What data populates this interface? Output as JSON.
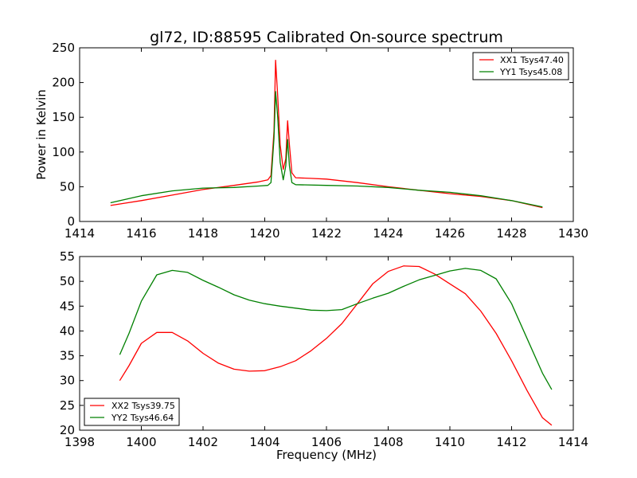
{
  "chart_data": [
    {
      "type": "line",
      "title": "gl72, ID:88595 Calibrated On-source spectrum",
      "xlabel": "",
      "ylabel": "Power in Kelvin",
      "xlim": [
        1414,
        1430
      ],
      "ylim": [
        0,
        250
      ],
      "xticks": [
        "1414",
        "1416",
        "1418",
        "1420",
        "1422",
        "1424",
        "1426",
        "1428",
        "1430"
      ],
      "yticks": [
        "0",
        "50",
        "100",
        "150",
        "200",
        "250"
      ],
      "grid": false,
      "legend_position": "top-right",
      "series": [
        {
          "name": "XX1 Tsys47.40",
          "color": "#ff0000",
          "points": [
            [
              1415.0,
              23
            ],
            [
              1416.0,
              30
            ],
            [
              1417.0,
              38
            ],
            [
              1418.0,
              46
            ],
            [
              1419.0,
              52
            ],
            [
              1419.8,
              57
            ],
            [
              1420.1,
              60
            ],
            [
              1420.2,
              66
            ],
            [
              1420.3,
              130
            ],
            [
              1420.35,
              232
            ],
            [
              1420.42,
              180
            ],
            [
              1420.5,
              110
            ],
            [
              1420.6,
              75
            ],
            [
              1420.68,
              90
            ],
            [
              1420.74,
              145
            ],
            [
              1420.8,
              110
            ],
            [
              1420.88,
              70
            ],
            [
              1421.0,
              63
            ],
            [
              1421.5,
              62
            ],
            [
              1422.0,
              61
            ],
            [
              1423.0,
              56
            ],
            [
              1424.0,
              50
            ],
            [
              1425.0,
              45
            ],
            [
              1426.0,
              40
            ],
            [
              1427.0,
              36
            ],
            [
              1428.0,
              30
            ],
            [
              1429.0,
              20
            ]
          ]
        },
        {
          "name": "YY1 Tsys45.08",
          "color": "#008000",
          "points": [
            [
              1415.0,
              27
            ],
            [
              1416.0,
              37
            ],
            [
              1417.0,
              44
            ],
            [
              1418.0,
              48
            ],
            [
              1419.0,
              49
            ],
            [
              1419.8,
              51
            ],
            [
              1420.1,
              52
            ],
            [
              1420.2,
              56
            ],
            [
              1420.3,
              120
            ],
            [
              1420.35,
              187
            ],
            [
              1420.42,
              150
            ],
            [
              1420.5,
              85
            ],
            [
              1420.6,
              60
            ],
            [
              1420.68,
              80
            ],
            [
              1420.74,
              118
            ],
            [
              1420.8,
              80
            ],
            [
              1420.88,
              56
            ],
            [
              1421.0,
              53
            ],
            [
              1422.0,
              52
            ],
            [
              1423.0,
              51
            ],
            [
              1424.0,
              49
            ],
            [
              1425.0,
              45
            ],
            [
              1426.0,
              42
            ],
            [
              1427.0,
              37
            ],
            [
              1428.0,
              30
            ],
            [
              1429.0,
              21
            ]
          ]
        }
      ]
    },
    {
      "type": "line",
      "title": "",
      "xlabel": "Frequency (MHz)",
      "ylabel": "",
      "xlim": [
        1398,
        1414
      ],
      "ylim": [
        20,
        55
      ],
      "xticks": [
        "1398",
        "1400",
        "1402",
        "1404",
        "1406",
        "1408",
        "1410",
        "1412",
        "1414"
      ],
      "yticks": [
        "20",
        "25",
        "30",
        "35",
        "40",
        "45",
        "50",
        "55"
      ],
      "grid": false,
      "legend_position": "bottom-left",
      "series": [
        {
          "name": "XX2 Tsys39.75",
          "color": "#ff0000",
          "points": [
            [
              1399.3,
              30
            ],
            [
              1399.6,
              33
            ],
            [
              1400.0,
              37.5
            ],
            [
              1400.5,
              39.7
            ],
            [
              1401.0,
              39.7
            ],
            [
              1401.5,
              38
            ],
            [
              1402.0,
              35.5
            ],
            [
              1402.5,
              33.5
            ],
            [
              1403.0,
              32.3
            ],
            [
              1403.5,
              31.9
            ],
            [
              1404.0,
              32
            ],
            [
              1404.5,
              32.8
            ],
            [
              1405.0,
              34
            ],
            [
              1405.5,
              36
            ],
            [
              1406.0,
              38.5
            ],
            [
              1406.5,
              41.5
            ],
            [
              1407.0,
              45.5
            ],
            [
              1407.5,
              49.5
            ],
            [
              1408.0,
              52
            ],
            [
              1408.5,
              53.1
            ],
            [
              1409.0,
              53
            ],
            [
              1409.5,
              51.5
            ],
            [
              1410.0,
              49.5
            ],
            [
              1410.5,
              47.5
            ],
            [
              1411.0,
              44
            ],
            [
              1411.5,
              39.5
            ],
            [
              1412.0,
              34
            ],
            [
              1412.5,
              28
            ],
            [
              1413.0,
              22.5
            ],
            [
              1413.3,
              21
            ]
          ]
        },
        {
          "name": "YY2 Tsys46.64",
          "color": "#008000",
          "points": [
            [
              1399.3,
              35.2
            ],
            [
              1399.6,
              39.5
            ],
            [
              1400.0,
              46
            ],
            [
              1400.5,
              51.3
            ],
            [
              1401.0,
              52.2
            ],
            [
              1401.5,
              51.8
            ],
            [
              1402.0,
              50.2
            ],
            [
              1402.5,
              48.8
            ],
            [
              1403.0,
              47.3
            ],
            [
              1403.5,
              46.2
            ],
            [
              1404.0,
              45.5
            ],
            [
              1404.5,
              45
            ],
            [
              1405.0,
              44.6
            ],
            [
              1405.5,
              44.2
            ],
            [
              1406.0,
              44.1
            ],
            [
              1406.5,
              44.3
            ],
            [
              1407.0,
              45.5
            ],
            [
              1407.5,
              46.6
            ],
            [
              1408.0,
              47.6
            ],
            [
              1408.5,
              49
            ],
            [
              1409.0,
              50.3
            ],
            [
              1409.5,
              51.2
            ],
            [
              1410.0,
              52.1
            ],
            [
              1410.5,
              52.6
            ],
            [
              1411.0,
              52.2
            ],
            [
              1411.5,
              50.5
            ],
            [
              1412.0,
              45.5
            ],
            [
              1412.5,
              38.5
            ],
            [
              1413.0,
              31.5
            ],
            [
              1413.3,
              28.2
            ]
          ]
        }
      ]
    }
  ]
}
